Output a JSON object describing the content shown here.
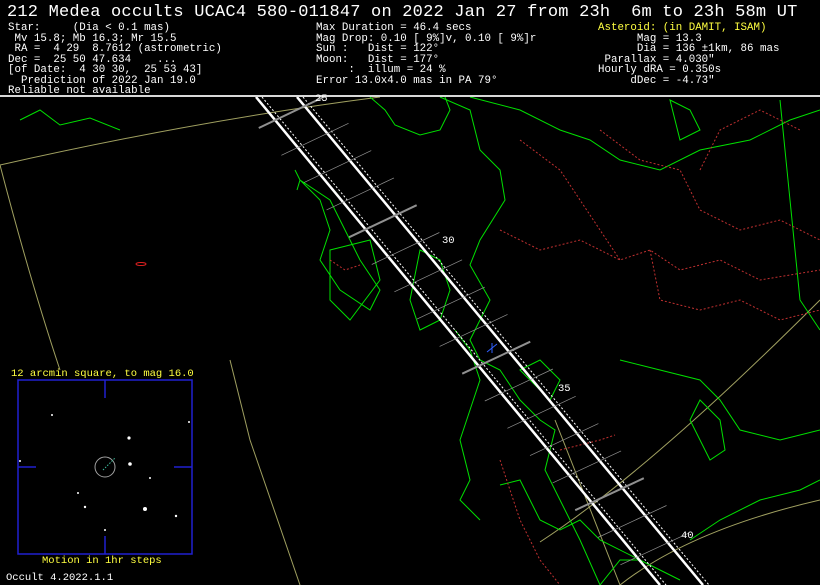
{
  "title": "212 Medea occults UCAC4 580-011847 on 2022 Jan 27 from 23h  6m to 23h 58m UT",
  "star": {
    "lines": [
      "Star:     (Dia < 0.1 mas)",
      " Mv 15.8; Mb 16.3; Mr 15.5",
      " RA =  4 29  8.7612 (astrometric)",
      "Dec =  25 50 47.634    ...",
      "[of Date:  4 30 30,  25 53 43]",
      "  Prediction of 2022 Jan 19.0",
      "Reliable not available"
    ]
  },
  "event": {
    "lines": [
      "Max Duration = 46.4 secs",
      "Mag Drop: 0.10 [ 9%]v, 0.10 [ 9%]r",
      "Sun :   Dist = 122°",
      "Moon:   Dist = 177°",
      "     :  illum = 24 %",
      "Error 13.0x4.0 mas in PA 79°"
    ]
  },
  "asteroid": {
    "heading": "Asteroid: (in DAMIT, ISAM)",
    "lines": [
      "      Mag = 13.3",
      "      Dia = 136 ±1km, 86 mas",
      " Parallax = 4.030\"",
      "Hourly dRA = 0.350s",
      "     dDec = -4.73\""
    ]
  },
  "map": {
    "time_labels": [
      "25",
      "30",
      "35",
      "40"
    ],
    "colors": {
      "coast": "#00e000",
      "border": "#c03030",
      "path": "#ffffff",
      "grid": "#a0a060",
      "finder_box": "#2020d0",
      "label": "#ffff40"
    }
  },
  "finder": {
    "caption_top": "12 arcmin square, to mag 16.0",
    "caption_bottom": "Motion in 1hr steps"
  },
  "footer": {
    "version": "Occult 4.2022.1.1"
  }
}
